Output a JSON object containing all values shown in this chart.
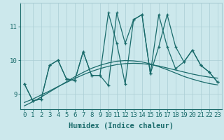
{
  "title": "",
  "xlabel": "Humidex (Indice chaleur)",
  "ylabel": "",
  "background_color": "#cce8ec",
  "grid_color": "#aacdd4",
  "line_color": "#1a6b6b",
  "x_data": [
    0,
    1,
    2,
    3,
    4,
    5,
    6,
    7,
    8,
    9,
    10,
    11,
    12,
    13,
    14,
    15,
    16,
    17,
    18,
    19,
    20,
    21,
    22,
    23
  ],
  "line1_y": [
    9.3,
    8.8,
    8.85,
    9.85,
    10.0,
    9.45,
    9.4,
    10.25,
    9.55,
    9.55,
    11.4,
    10.5,
    9.3,
    11.2,
    11.35,
    9.6,
    11.35,
    10.4,
    9.75,
    9.95,
    10.3,
    9.85,
    9.65,
    9.35
  ],
  "line2_y": [
    9.3,
    8.8,
    8.85,
    9.85,
    10.0,
    9.45,
    9.4,
    10.25,
    9.55,
    9.55,
    9.25,
    11.4,
    10.5,
    11.2,
    11.35,
    9.6,
    10.4,
    11.35,
    10.4,
    9.95,
    10.3,
    9.85,
    9.65,
    9.35
  ],
  "smooth1_y": [
    8.75,
    8.85,
    8.97,
    9.09,
    9.22,
    9.34,
    9.46,
    9.57,
    9.67,
    9.75,
    9.82,
    9.87,
    9.9,
    9.91,
    9.9,
    9.87,
    9.83,
    9.77,
    9.71,
    9.65,
    9.59,
    9.54,
    9.5,
    9.47
  ],
  "smooth2_y": [
    8.65,
    8.77,
    8.91,
    9.06,
    9.21,
    9.36,
    9.51,
    9.64,
    9.76,
    9.85,
    9.92,
    9.97,
    9.99,
    9.98,
    9.95,
    9.89,
    9.81,
    9.72,
    9.62,
    9.52,
    9.44,
    9.37,
    9.31,
    9.27
  ],
  "yticks": [
    9,
    10,
    11
  ],
  "ylim": [
    8.55,
    11.7
  ],
  "xlim": [
    -0.5,
    23.5
  ],
  "tick_fontsize": 6.5,
  "label_fontsize": 7.5
}
